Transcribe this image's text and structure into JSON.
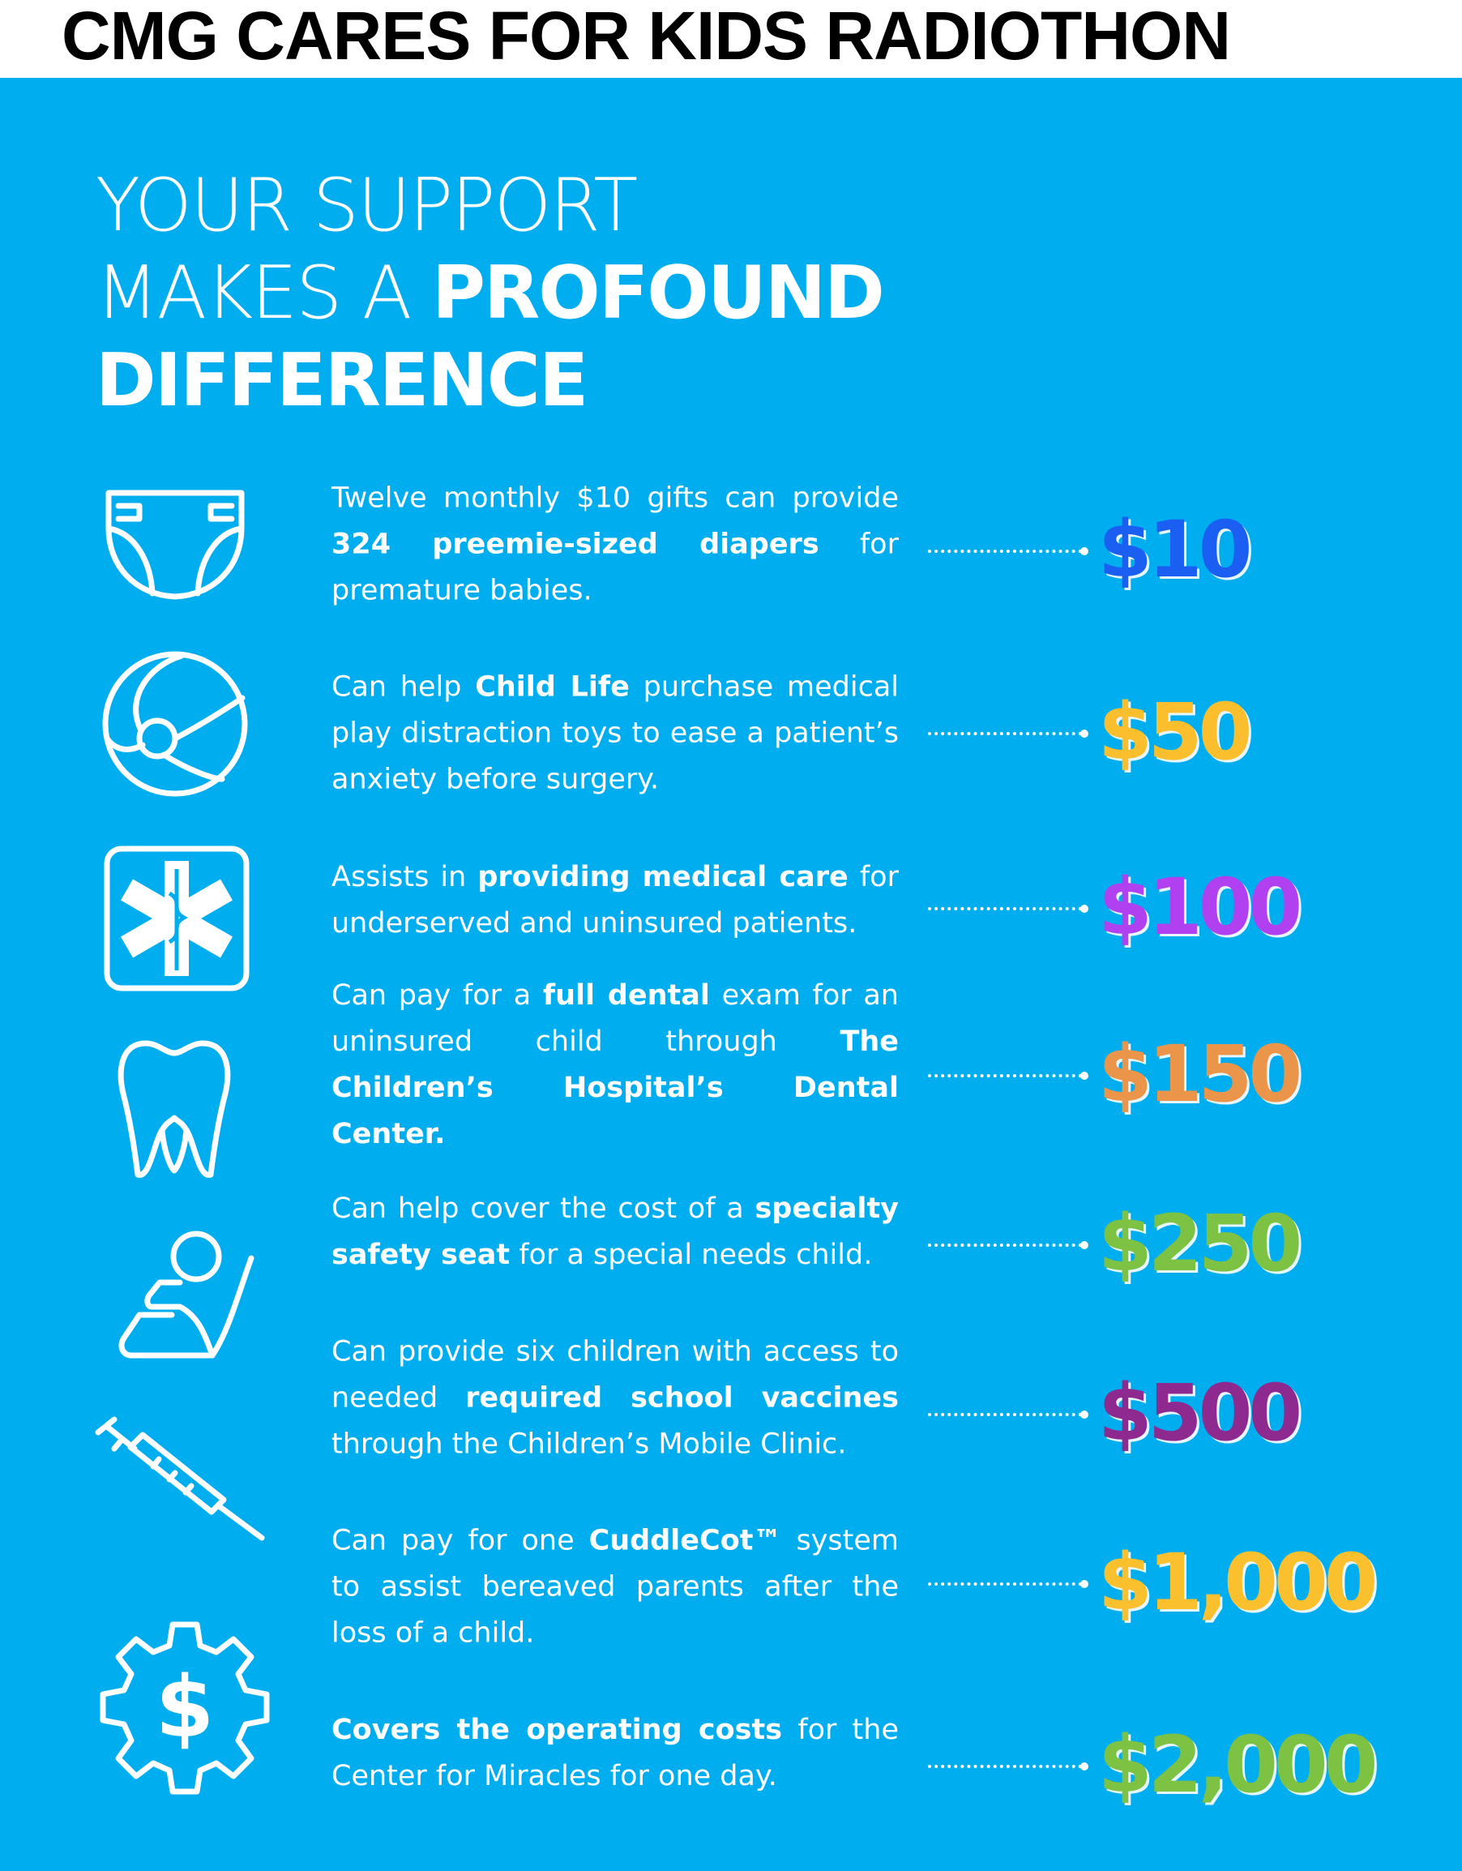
{
  "header": {
    "title": "CMG CARES FOR KIDS RADIOTHON"
  },
  "headline": {
    "line1": "YOUR SUPPORT",
    "line2_light": "MAKES A ",
    "line2_bold": "PROFOUND",
    "line3": "DIFFERENCE"
  },
  "colors": {
    "background": "#00aeef",
    "text": "#ffffff"
  },
  "rows": [
    {
      "icon": "diaper-icon",
      "amount": "$10",
      "color": "#1a5ff2",
      "segments": [
        {
          "text": "Twelve monthly $10 gifts can provide ",
          "bold": false
        },
        {
          "text": "324 preemie-sized diapers",
          "bold": true
        },
        {
          "text": " for premature babies.",
          "bold": false
        }
      ]
    },
    {
      "icon": "ball-icon",
      "amount": "$50",
      "color": "#fbbf2d",
      "segments": [
        {
          "text": "Can help ",
          "bold": false
        },
        {
          "text": "Child Life",
          "bold": true
        },
        {
          "text": " purchase medical play distraction toys to ease a patient’s anxiety before surgery.",
          "bold": false
        }
      ]
    },
    {
      "icon": "medical-star-icon",
      "amount": "$100",
      "color": "#b140f0",
      "segments": [
        {
          "text": "Assists in ",
          "bold": false
        },
        {
          "text": "providing medical care",
          "bold": true
        },
        {
          "text": " for underserved and uninsured patients.",
          "bold": false
        }
      ]
    },
    {
      "icon": "tooth-icon",
      "amount": "$150",
      "color": "#ea9549",
      "segments": [
        {
          "text": "Can pay for a ",
          "bold": false
        },
        {
          "text": "full dental",
          "bold": true
        },
        {
          "text": " exam for an uninsured child through ",
          "bold": false
        },
        {
          "text": "The Children’s Hospital’s Dental Center.",
          "bold": true
        }
      ]
    },
    {
      "icon": "safety-seat-icon",
      "amount": "$250",
      "color": "#7dc243",
      "segments": [
        {
          "text": "Can help cover the cost of a ",
          "bold": false
        },
        {
          "text": "specialty safety seat",
          "bold": true
        },
        {
          "text": " for a special needs child.",
          "bold": false
        }
      ]
    },
    {
      "icon": "syringe-icon",
      "amount": "$500",
      "color": "#8e2a8f",
      "segments": [
        {
          "text": "Can provide six children with access to needed ",
          "bold": false
        },
        {
          "text": "required school vaccines",
          "bold": true
        },
        {
          "text": " through the Children’s Mobile Clinic.",
          "bold": false
        }
      ]
    },
    {
      "icon": "",
      "amount": "$1,000",
      "color": "#fbc02d",
      "segments": [
        {
          "text": "Can pay for one ",
          "bold": false
        },
        {
          "text": "CuddleCot™",
          "bold": true
        },
        {
          "text": " system to assist bereaved parents after the loss of a child.",
          "bold": false
        }
      ]
    },
    {
      "icon": "dollar-gear-icon",
      "amount": "$2,000",
      "color": "#7dc243",
      "segments": [
        {
          "text": "Covers the operating costs",
          "bold": true
        },
        {
          "text": " for the Center for Miracles for one day.",
          "bold": false
        }
      ]
    }
  ]
}
